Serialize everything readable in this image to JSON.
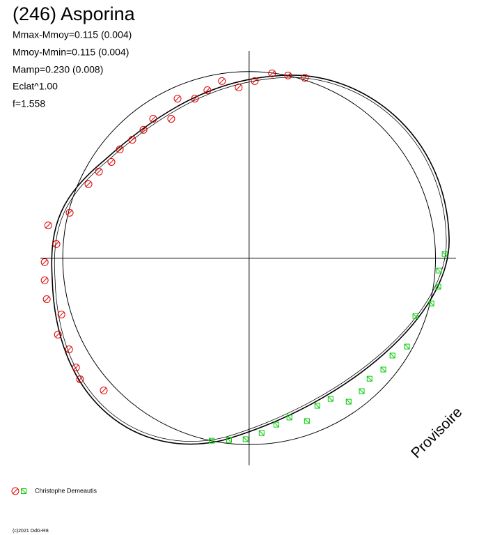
{
  "chart_data": {
    "type": "scatter",
    "title": "(246) Asporina",
    "stats": [
      "Mmax-Mmoy=0.115 (0.004)",
      "Mmoy-Mmin=0.115 (0.004)",
      "Mamp=0.230 (0.008)",
      "Eclat^1.00",
      "f=1.558"
    ],
    "annotation": "Provisoire",
    "footer": "(c)2021 OdG-R8",
    "xlim": [
      -1.12,
      1.11
    ],
    "ylim": [
      -1.11,
      1.11
    ],
    "reference_circle": 1,
    "series": [
      {
        "name": "Christophe Demeautis",
        "marker": "circle",
        "color": "#e00000",
        "x": [
          -1.078,
          -1.034,
          -1.097,
          -1.097,
          -1.086,
          -1.007,
          -1.026,
          -0.966,
          -0.929,
          -0.907,
          -0.78,
          -0.963,
          -0.862,
          -0.806,
          -0.739,
          -0.694,
          -0.627,
          -0.567,
          -0.515,
          -0.418,
          -0.384,
          -0.291,
          -0.224,
          -0.146,
          -0.056,
          0.03,
          0.123,
          0.209,
          0.299
        ],
        "y": [
          0.175,
          0.075,
          -0.022,
          -0.119,
          -0.22,
          -0.302,
          -0.41,
          -0.489,
          -0.586,
          -0.649,
          -0.709,
          0.243,
          0.396,
          0.463,
          0.515,
          0.582,
          0.634,
          0.687,
          0.746,
          0.746,
          0.854,
          0.854,
          0.899,
          0.948,
          0.914,
          0.948,
          0.989,
          0.978,
          0.966
        ]
      },
      {
        "marker": "square",
        "color": "#00cc00",
        "x": [
          1.049,
          1.019,
          1.015,
          0.978,
          0.892,
          0.847,
          0.769,
          0.72,
          0.646,
          0.604,
          0.534,
          0.437,
          0.366,
          0.31,
          0.216,
          0.146,
          0.067,
          -0.019,
          -0.108,
          -0.201
        ],
        "y": [
          0.022,
          -0.067,
          -0.153,
          -0.243,
          -0.31,
          -0.474,
          -0.522,
          -0.597,
          -0.646,
          -0.713,
          -0.769,
          -0.754,
          -0.791,
          -0.873,
          -0.854,
          -0.892,
          -0.937,
          -0.97,
          -0.974,
          -0.978
        ]
      }
    ]
  }
}
